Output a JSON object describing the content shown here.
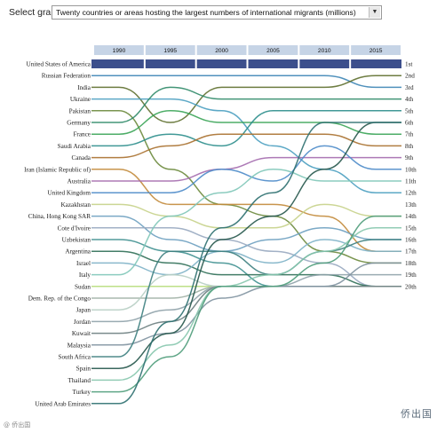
{
  "selector": {
    "label": "Select graph:",
    "value": "Twenty countries or areas hosting the largest numbers of international migrants (millions)"
  },
  "watermark": "侨出国",
  "watermark_small": "@ 侨出国",
  "chart_data": {
    "type": "bump",
    "years": [
      "1990",
      "1995",
      "2000",
      "2005",
      "2010",
      "2015"
    ],
    "ranks": [
      "1st",
      "2nd",
      "3rd",
      "4th",
      "5th",
      "6th",
      "7th",
      "8th",
      "9th",
      "10th",
      "11th",
      "12th",
      "13th",
      "14th",
      "15th",
      "16th",
      "17th",
      "18th",
      "19th",
      "20th"
    ],
    "series": [
      {
        "name": "United States of America",
        "color": "#3c4f8c",
        "positions": [
          1,
          1,
          1,
          1,
          1,
          1
        ]
      },
      {
        "name": "Russian Federation",
        "color": "#3d85b5",
        "positions": [
          2,
          2,
          2,
          2,
          2,
          3
        ]
      },
      {
        "name": "India",
        "color": "#5e6f2e",
        "positions": [
          3,
          6,
          3,
          3,
          3,
          2
        ]
      },
      {
        "name": "Ukraine",
        "color": "#4a9ec0",
        "positions": [
          4,
          4,
          5,
          8,
          10,
          12
        ]
      },
      {
        "name": "Pakistan",
        "color": "#6c8a3c",
        "positions": [
          5,
          10,
          13,
          14,
          17,
          18
        ]
      },
      {
        "name": "Germany",
        "color": "#2f8a68",
        "positions": [
          6,
          3,
          4,
          4,
          4,
          4
        ]
      },
      {
        "name": "France",
        "color": "#3aa456",
        "positions": [
          7,
          5,
          6,
          6,
          6,
          7
        ]
      },
      {
        "name": "Saudi Arabia",
        "color": "#2c8e8c",
        "positions": [
          8,
          7,
          8,
          5,
          5,
          5
        ]
      },
      {
        "name": "Canada",
        "color": "#a8702e",
        "positions": [
          9,
          8,
          7,
          7,
          7,
          8
        ]
      },
      {
        "name": "Iran (Islamic Republic of)",
        "color": "#c28a3a",
        "positions": [
          10,
          13,
          13,
          13,
          14,
          17
        ]
      },
      {
        "name": "Australia",
        "color": "#a46cae",
        "positions": [
          11,
          11,
          10,
          9,
          9,
          9
        ]
      },
      {
        "name": "United Kingdom",
        "color": "#4c8bc9",
        "positions": [
          12,
          12,
          10,
          11,
          8,
          10
        ]
      },
      {
        "name": "Kazakhstan",
        "color": "#c7d28a",
        "positions": [
          13,
          14,
          15,
          15,
          13,
          14
        ]
      },
      {
        "name": "China, Hong Kong SAR",
        "color": "#6da0c0",
        "positions": [
          14,
          16,
          17,
          16,
          15,
          16
        ]
      },
      {
        "name": "Cote d'Ivoire",
        "color": "#98a8c0",
        "positions": [
          15,
          15,
          16,
          17,
          18,
          20
        ]
      },
      {
        "name": "Uzbekistan",
        "color": "#3f9090",
        "positions": [
          16,
          17,
          18,
          20,
          20,
          20
        ]
      },
      {
        "name": "Argentina",
        "color": "#2f6f56",
        "positions": [
          17,
          18,
          19,
          19,
          19,
          20
        ]
      },
      {
        "name": "Israel",
        "color": "#7db1c7",
        "positions": [
          18,
          19,
          17,
          18,
          16,
          17
        ]
      },
      {
        "name": "Italy",
        "color": "#7fc6b8",
        "positions": [
          19,
          14,
          12,
          10,
          11,
          11
        ]
      },
      {
        "name": "Sudan",
        "color": "#b7dd7a",
        "positions": [
          20,
          20,
          20,
          20,
          20,
          20
        ]
      },
      {
        "name": "Dem. Rep. of the Congo",
        "color": "#9fb0a4",
        "positions": [
          21,
          21,
          20,
          20,
          20,
          20
        ]
      },
      {
        "name": "Japan",
        "color": "#b8cfc4",
        "positions": [
          22,
          19,
          20,
          20,
          20,
          20
        ]
      },
      {
        "name": "Jordan",
        "color": "#8fa2aa",
        "positions": [
          23,
          22,
          20,
          20,
          19,
          19
        ]
      },
      {
        "name": "Kuwait",
        "color": "#6b7e7f",
        "positions": [
          24,
          23,
          20,
          20,
          20,
          20
        ]
      },
      {
        "name": "Malaysia",
        "color": "#7f92a0",
        "positions": [
          25,
          24,
          21,
          20,
          20,
          18
        ]
      },
      {
        "name": "South Africa",
        "color": "#3d8080",
        "positions": [
          26,
          17,
          17,
          19,
          17,
          16
        ]
      },
      {
        "name": "Spain",
        "color": "#25574b",
        "positions": [
          27,
          24,
          16,
          14,
          10,
          6
        ]
      },
      {
        "name": "Thailand",
        "color": "#86c6ad",
        "positions": [
          28,
          25,
          20,
          19,
          17,
          15
        ]
      },
      {
        "name": "Turkey",
        "color": "#4e9c7a",
        "positions": [
          29,
          26,
          20,
          20,
          18,
          14
        ]
      },
      {
        "name": "United Arab Emirates",
        "color": "#2e7070",
        "positions": [
          30,
          23,
          15,
          12,
          6,
          6
        ]
      }
    ]
  }
}
